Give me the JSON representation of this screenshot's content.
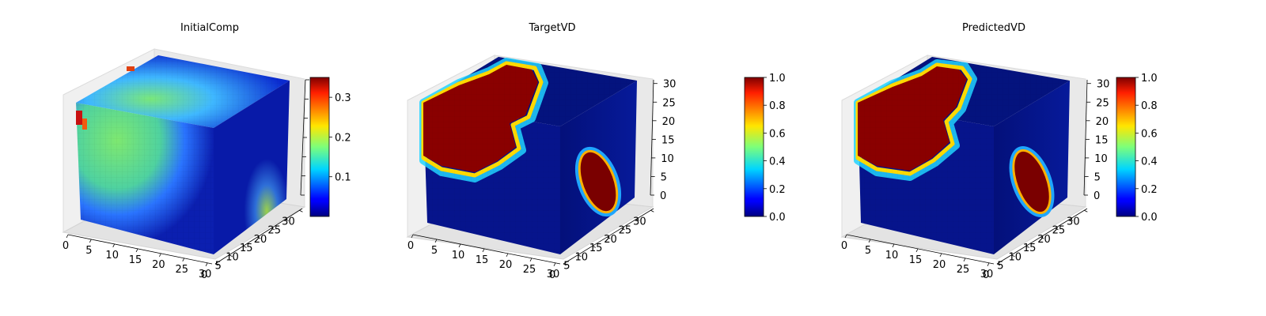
{
  "chart_data": [
    {
      "type": "3d-voxel",
      "title": "InitialComp",
      "x_ticks": [
        "0",
        "5",
        "10",
        "15",
        "20",
        "25",
        "30"
      ],
      "y_ticks": [
        "0",
        "5",
        "10",
        "15",
        "20",
        "25",
        "30"
      ],
      "z_ticks": [],
      "grid_size": 32,
      "colormap": "jet",
      "colorbar": {
        "range": [
          0.0,
          0.35
        ],
        "ticks": [
          "0.1",
          "0.2",
          "0.3"
        ],
        "tick_values": [
          0.1,
          0.2,
          0.3
        ]
      }
    },
    {
      "type": "3d-voxel",
      "title": "TargetVD",
      "x_ticks": [
        "0",
        "5",
        "10",
        "15",
        "20",
        "25",
        "30"
      ],
      "y_ticks": [
        "0",
        "5",
        "10",
        "15",
        "20",
        "25",
        "30"
      ],
      "z_ticks": [
        "0",
        "5",
        "10",
        "15",
        "20",
        "25",
        "30"
      ],
      "grid_size": 32,
      "colormap": "jet",
      "colorbar": {
        "range": [
          0.0,
          1.0
        ],
        "ticks": [
          "0.0",
          "0.2",
          "0.4",
          "0.6",
          "0.8",
          "1.0"
        ],
        "tick_values": [
          0.0,
          0.2,
          0.4,
          0.6,
          0.8,
          1.0
        ]
      }
    },
    {
      "type": "3d-voxel",
      "title": "PredictedVD",
      "x_ticks": [
        "0",
        "5",
        "10",
        "15",
        "20",
        "25",
        "30"
      ],
      "y_ticks": [
        "0",
        "5",
        "10",
        "15",
        "20",
        "25",
        "30"
      ],
      "z_ticks": [
        "0",
        "5",
        "10",
        "15",
        "20",
        "25",
        "30"
      ],
      "grid_size": 32,
      "colormap": "jet",
      "colorbar": {
        "range": [
          0.0,
          1.0
        ],
        "ticks": [
          "0.0",
          "0.2",
          "0.4",
          "0.6",
          "0.8",
          "1.0"
        ],
        "tick_values": [
          0.0,
          0.2,
          0.4,
          0.6,
          0.8,
          1.0
        ]
      }
    }
  ]
}
